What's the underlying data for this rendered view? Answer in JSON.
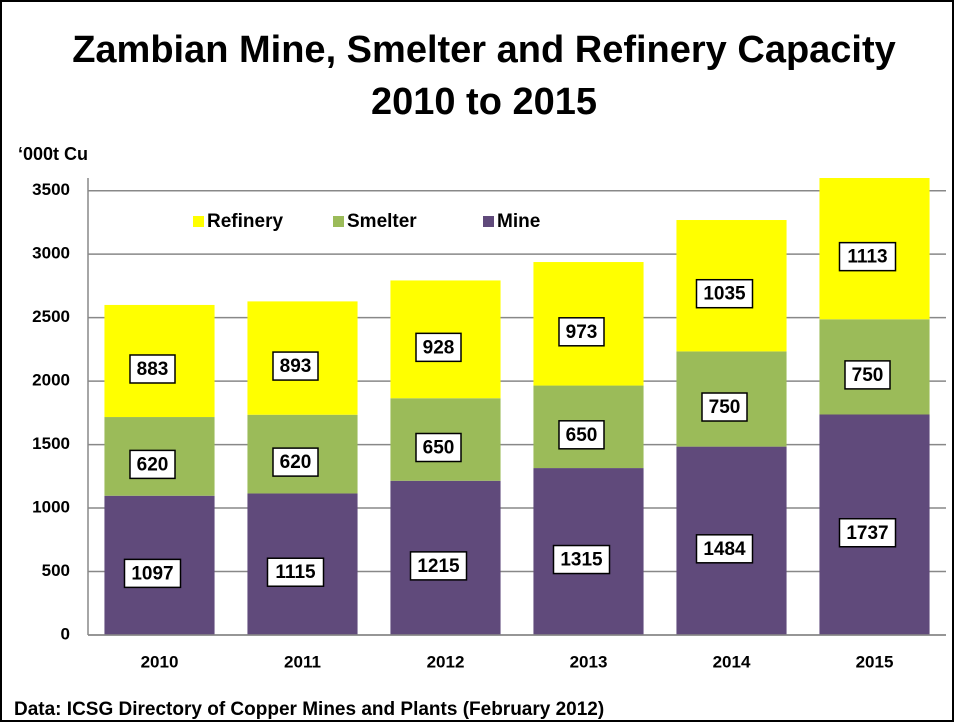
{
  "chart_data": {
    "type": "stacked_bar",
    "title": "Zambian Mine, Smelter and Refinery Capacity",
    "subtitle": "2010 to 2015",
    "y_axis_label": "‘000t Cu",
    "source": "Data: ICSG Directory of Copper Mines and Plants (February 2012)",
    "categories": [
      "2010",
      "2011",
      "2012",
      "2013",
      "2014",
      "2015"
    ],
    "series": [
      {
        "name": "Mine",
        "color": "#604a7b",
        "values": [
          1097,
          1115,
          1215,
          1315,
          1484,
          1737
        ]
      },
      {
        "name": "Smelter",
        "color": "#9bbb59",
        "values": [
          620,
          620,
          650,
          650,
          750,
          750
        ]
      },
      {
        "name": "Refinery",
        "color": "#ffff00",
        "values": [
          883,
          893,
          928,
          973,
          1035,
          1113
        ]
      }
    ],
    "ylim": [
      0,
      3600
    ],
    "yticks": [
      0,
      500,
      1000,
      1500,
      2000,
      2500,
      3000,
      3500
    ],
    "grid": true,
    "legend": "top"
  }
}
